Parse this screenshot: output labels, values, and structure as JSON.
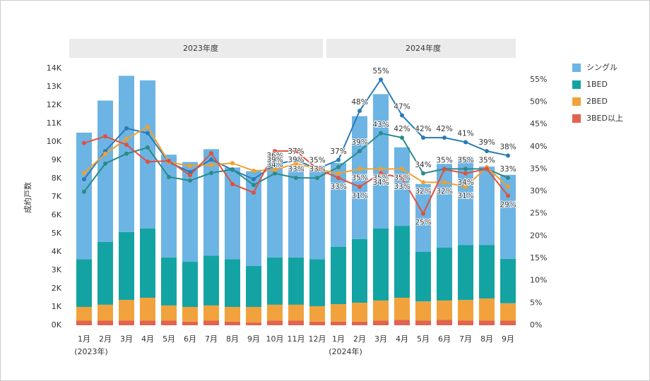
{
  "chart_data": {
    "type": "bar-line",
    "y_label": "成約戸数",
    "facets": [
      {
        "title": "2023年度",
        "note": "(2023年)",
        "categories": [
          "1月",
          "2月",
          "3月",
          "4月",
          "5月",
          "6月",
          "7月",
          "8月",
          "9月",
          "10月",
          "11月",
          "12月"
        ]
      },
      {
        "title": "2024年度",
        "note": "(2024年)",
        "categories": [
          "1月",
          "2月",
          "3月",
          "4月",
          "5月",
          "6月",
          "7月",
          "8月",
          "9月"
        ]
      }
    ],
    "series": [
      {
        "name": "シングル",
        "color": "#6cb4e4",
        "line_color": "#2a7bb5",
        "values": [
          6900,
          7700,
          8520,
          8080,
          5600,
          5440,
          5800,
          5000,
          5170,
          5700,
          4950,
          5100,
          4580,
          6700,
          7330,
          4280,
          3700,
          4570,
          4820,
          4270,
          4580
        ],
        "ratios": [
          32.7,
          39,
          44.1,
          43,
          36.5,
          34.3,
          37.1,
          34.8,
          32.7,
          36,
          37,
          35,
          37,
          48,
          55,
          47,
          42,
          42,
          41,
          39,
          38
        ],
        "ratio_labels": [
          null,
          null,
          null,
          null,
          null,
          null,
          null,
          null,
          null,
          "36%",
          "37%",
          "35%",
          "37%",
          "48%",
          "55%",
          "47%",
          "42%",
          "42%",
          "41%",
          "39%",
          "38%"
        ]
      },
      {
        "name": "1BED",
        "color": "#14a3a3",
        "line_color": "#2a8a88",
        "values": [
          2600,
          3430,
          3700,
          3770,
          2620,
          2460,
          2720,
          2600,
          2230,
          2580,
          2580,
          2560,
          3120,
          3470,
          3920,
          3920,
          2700,
          2880,
          3000,
          2920,
          2420
        ],
        "ratios": [
          29.9,
          36.2,
          38.4,
          39.8,
          33.2,
          32.4,
          34.1,
          34.9,
          31.4,
          34,
          33,
          33,
          35.4,
          39,
          43,
          42,
          34,
          35,
          35,
          35,
          33
        ],
        "ratio_labels": [
          null,
          null,
          null,
          null,
          null,
          null,
          null,
          null,
          null,
          "34%",
          "33%",
          "33%",
          null,
          "39%",
          "43%",
          "42%",
          "34%",
          "35%",
          "35%",
          "35%",
          "33%"
        ]
      },
      {
        "name": "2BED",
        "color": "#f2a23c",
        "line_color": "#f0a030",
        "values": [
          750,
          870,
          1130,
          1250,
          830,
          800,
          830,
          800,
          850,
          870,
          870,
          840,
          950,
          1030,
          1100,
          1200,
          1050,
          1050,
          1130,
          1210,
          950
        ],
        "ratios": [
          34.1,
          38.4,
          41.7,
          44.4,
          36.5,
          35.7,
          35.9,
          36.3,
          34.6,
          34.8,
          36.2,
          35,
          34,
          35,
          35,
          35,
          32,
          32,
          31,
          35.4,
          31
        ],
        "ratio_labels": [
          null,
          null,
          null,
          null,
          null,
          null,
          null,
          null,
          null,
          null,
          null,
          null,
          null,
          "35%",
          "35%",
          "35%",
          "32%",
          "32%",
          "31%",
          null,
          null
        ]
      },
      {
        "name": "3BED以上",
        "color": "#e06450",
        "line_color": "#e05040",
        "values": [
          250,
          250,
          250,
          250,
          250,
          200,
          250,
          200,
          150,
          250,
          250,
          200,
          200,
          200,
          250,
          300,
          250,
          300,
          250,
          250,
          250
        ],
        "ratios": [
          40.8,
          42.3,
          40.4,
          36.6,
          36.8,
          33.6,
          38.5,
          31.6,
          29.7,
          39,
          39,
          35,
          33,
          31,
          34,
          33,
          25,
          34.9,
          34,
          35,
          29
        ],
        "ratio_labels": [
          null,
          null,
          null,
          null,
          null,
          null,
          null,
          null,
          null,
          "39%",
          "39%",
          null,
          "33%",
          "31%",
          "34%",
          "33%",
          "25%",
          null,
          "34%",
          null,
          "29%"
        ]
      }
    ],
    "ylim": [
      0,
      14000
    ],
    "yticks": [
      {
        "value": 0,
        "label": "0K"
      },
      {
        "value": 1000,
        "label": "1K"
      },
      {
        "value": 2000,
        "label": "2K"
      },
      {
        "value": 3000,
        "label": "3K"
      },
      {
        "value": 4000,
        "label": "4K"
      },
      {
        "value": 5000,
        "label": "5K"
      },
      {
        "value": 6000,
        "label": "6K"
      },
      {
        "value": 7000,
        "label": "7K"
      },
      {
        "value": 8000,
        "label": "8K"
      },
      {
        "value": 9000,
        "label": "9K"
      },
      {
        "value": 10000,
        "label": "10K"
      },
      {
        "value": 11000,
        "label": "11K"
      },
      {
        "value": 12000,
        "label": "12K"
      },
      {
        "value": 13000,
        "label": "13K"
      },
      {
        "value": 14000,
        "label": "14K"
      }
    ],
    "y2lim": [
      0,
      57.5
    ],
    "y2ticks": [
      {
        "value": 0,
        "label": "0%"
      },
      {
        "value": 5,
        "label": "5%"
      },
      {
        "value": 10,
        "label": "10%"
      },
      {
        "value": 15,
        "label": "15%"
      },
      {
        "value": 20,
        "label": "20%"
      },
      {
        "value": 25,
        "label": "25%"
      },
      {
        "value": 30,
        "label": "30%"
      },
      {
        "value": 35,
        "label": "35%"
      },
      {
        "value": 40,
        "label": "40%"
      },
      {
        "value": 45,
        "label": "45%"
      },
      {
        "value": 50,
        "label": "50%"
      },
      {
        "value": 55,
        "label": "55%"
      }
    ],
    "legend": "right"
  }
}
